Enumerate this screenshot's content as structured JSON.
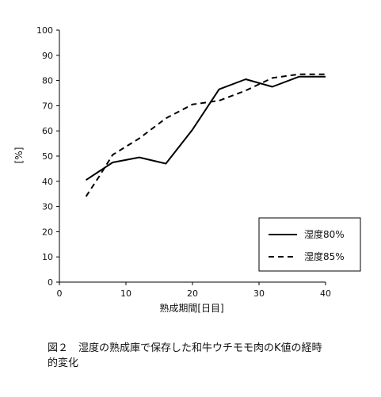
{
  "chart_data": {
    "type": "line",
    "title": "",
    "xlabel": "熟成期間[日目]",
    "ylabel": "[%]",
    "xlim": [
      0,
      40
    ],
    "ylim": [
      0,
      100
    ],
    "x_ticks": [
      0,
      10,
      20,
      30,
      40
    ],
    "y_ticks": [
      0,
      10,
      20,
      30,
      40,
      50,
      60,
      70,
      80,
      90,
      100
    ],
    "grid": false,
    "legend": "bottom-right",
    "series": [
      {
        "name": "湿度80%",
        "line_style": "solid",
        "color": "#000000",
        "x": [
          4,
          8,
          12,
          16,
          20,
          24,
          28,
          32,
          36,
          40
        ],
        "values": [
          40.5,
          47.5,
          49.5,
          47,
          60.5,
          76.5,
          80.5,
          77.5,
          81.5,
          81.5
        ]
      },
      {
        "name": "湿度85%",
        "line_style": "dashed",
        "color": "#000000",
        "x": [
          4,
          6,
          8,
          12,
          16,
          20,
          24,
          28,
          32,
          36,
          40
        ],
        "values": [
          34,
          42,
          50.5,
          57,
          65,
          70.5,
          72,
          76,
          81,
          82.5,
          82.5
        ]
      }
    ]
  },
  "caption": {
    "line1": "図２　湿度の熟成庫で保存した和牛ウチモモ肉のK値の経時",
    "line2": "的変化"
  }
}
